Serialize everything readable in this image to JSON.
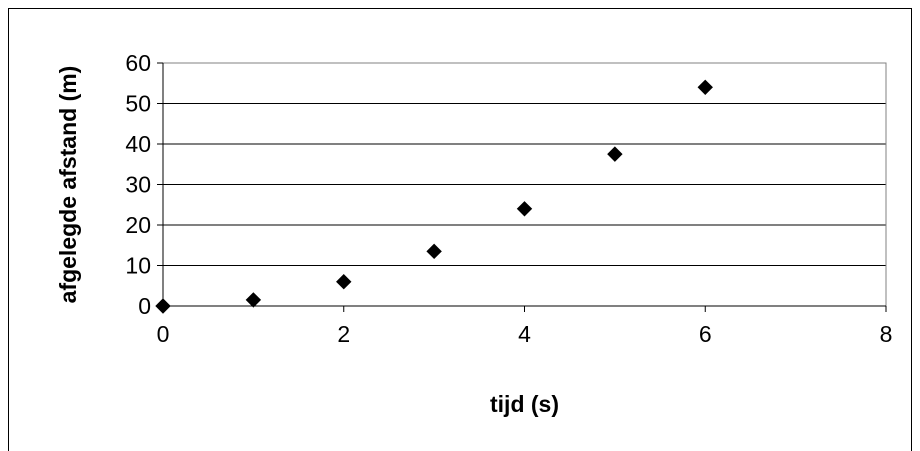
{
  "chart_data": {
    "type": "scatter",
    "title": "",
    "xlabel": "tijd (s)",
    "ylabel": "afgelegde afstand (m)",
    "xlim": [
      0,
      8
    ],
    "ylim": [
      0,
      60
    ],
    "xticks": [
      "0",
      "2",
      "4",
      "6",
      "8"
    ],
    "yticks": [
      "0",
      "10",
      "20",
      "30",
      "40",
      "50",
      "60"
    ],
    "grid": "horizontal",
    "legend": "none",
    "marker": "diamond",
    "marker_color": "#000000",
    "series": [
      {
        "x": [
          0,
          1,
          2,
          3,
          4,
          5,
          6
        ],
        "y": [
          0,
          1.5,
          6,
          13.5,
          24,
          37.5,
          54
        ]
      }
    ]
  }
}
